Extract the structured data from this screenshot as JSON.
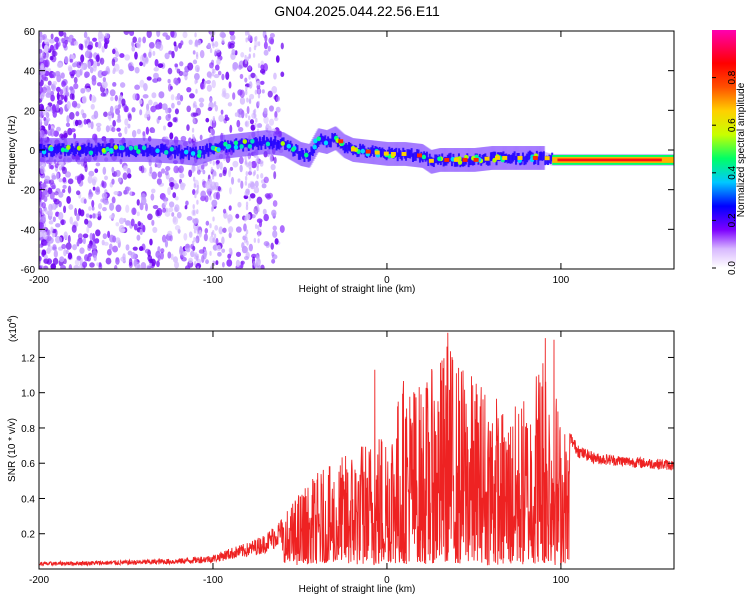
{
  "chart_data": [
    {
      "type": "heatmap",
      "title": "GN04.2025.044.22.56.E11",
      "xlabel": "Height of straight line (km)",
      "ylabel": "Frequency (Hz)",
      "xlim": [
        -200,
        165
      ],
      "ylim": [
        -60,
        60
      ],
      "x_ticks": [
        -200,
        -100,
        0,
        100
      ],
      "y_ticks": [
        -60,
        -40,
        -20,
        0,
        20,
        40,
        60
      ],
      "colorbar": {
        "label": "Normalized spectral amplitude",
        "range": [
          0,
          1
        ],
        "ticks": [
          "0.0",
          "0.2",
          "0.4",
          "0.6",
          "0.8"
        ],
        "tick_values": [
          0.0,
          0.2,
          0.4,
          0.6,
          0.8
        ],
        "colors": [
          "#ffffff",
          "#c9a0ff",
          "#7d00ff",
          "#0000ff",
          "#00c8ff",
          "#00ff66",
          "#c8ff00",
          "#ffd000",
          "#ff5000",
          "#ff0000",
          "#ff00b0"
        ]
      },
      "ridge": {
        "x": [
          -200,
          -180,
          -160,
          -140,
          -120,
          -110,
          -100,
          -90,
          -80,
          -70,
          -60,
          -50,
          -45,
          -40,
          -35,
          -30,
          -25,
          -20,
          -10,
          0,
          10,
          20,
          25,
          30,
          40,
          50,
          60,
          70,
          80,
          90,
          95,
          110,
          130,
          150,
          165
        ],
        "y": [
          0,
          0,
          0,
          0,
          -1,
          -2,
          1,
          2,
          3,
          4,
          3,
          -2,
          -3,
          5,
          4,
          6,
          2,
          0,
          -1,
          -2,
          -2,
          -3,
          -6,
          -5,
          -5,
          -5,
          -4,
          -4,
          -4,
          -4,
          -5,
          -5,
          -5,
          -5,
          -5
        ]
      }
    },
    {
      "type": "line",
      "ylabel": "SNR (10 * v/v)",
      "xlabel": "Height of straight line (km)",
      "y_multiplier": "(x10",
      "y_multiplier_exp": "4",
      "y_multiplier_close": ")",
      "xlim": [
        -200,
        165
      ],
      "ylim": [
        0,
        1.35
      ],
      "x_ticks": [
        -200,
        -100,
        0,
        100
      ],
      "y_ticks": [
        0.2,
        0.4,
        0.6,
        0.8,
        1.0,
        1.2
      ],
      "y_tick_labels": [
        "0.2",
        "0.4",
        "0.6",
        "0.8",
        "1.0",
        "1.2"
      ],
      "color": "#ee2222",
      "envelope": {
        "x": [
          -200,
          -150,
          -120,
          -100,
          -90,
          -80,
          -70,
          -60,
          -50,
          -40,
          -30,
          -20,
          -10,
          0,
          5,
          10,
          20,
          30,
          35,
          40,
          50,
          60,
          70,
          80,
          90,
          93,
          100,
          110,
          120,
          140,
          165
        ],
        "y": [
          0.04,
          0.05,
          0.06,
          0.08,
          0.12,
          0.15,
          0.2,
          0.3,
          0.45,
          0.55,
          0.6,
          0.7,
          0.75,
          0.85,
          0.95,
          1.12,
          1.05,
          1.2,
          1.32,
          1.2,
          1.1,
          1.05,
          0.9,
          1.0,
          1.3,
          1.3,
          0.85,
          0.68,
          0.64,
          0.62,
          0.6
        ]
      },
      "peaks": [
        {
          "x": -7,
          "y": 1.13
        },
        {
          "x": 35,
          "y": 1.34
        },
        {
          "x": 91,
          "y": 1.31
        },
        {
          "x": 96,
          "y": 1.3
        },
        {
          "x": 110,
          "y": 0.7
        }
      ]
    }
  ]
}
